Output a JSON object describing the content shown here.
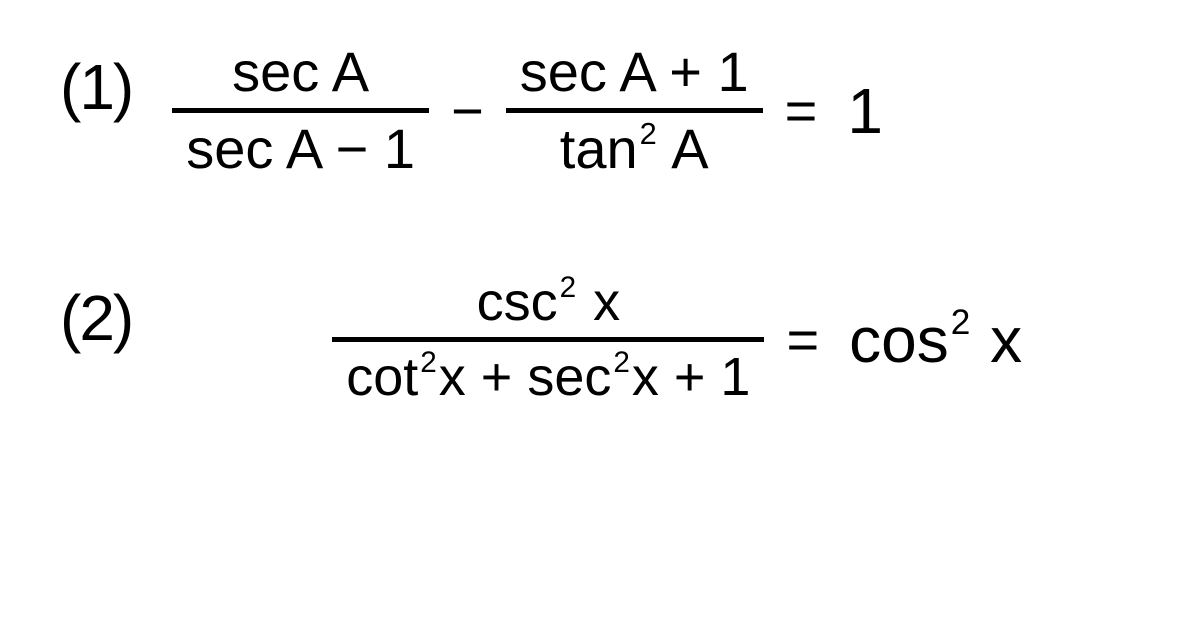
{
  "background_color": "#ffffff",
  "text_color": "#000000",
  "problems": [
    {
      "label": "(1)",
      "frac1_num": "sec A",
      "frac1_den": "sec A − 1",
      "op1": "−",
      "frac2_num": "sec A + 1",
      "frac2_den_pre": "tan",
      "frac2_den_sup": "2",
      "frac2_den_post": " A",
      "eq": "=",
      "rhs": "1"
    },
    {
      "label": "(2)",
      "frac_num_pre": "csc",
      "frac_num_sup": "2",
      "frac_num_post": " x",
      "frac_den_t1_pre": "cot",
      "frac_den_t1_sup": "2",
      "frac_den_t1_post": "x",
      "frac_den_plus": " + ",
      "frac_den_t2_pre": "sec",
      "frac_den_t2_sup": "2",
      "frac_den_t2_post": "x",
      "frac_den_tail": " + 1",
      "eq": "=",
      "rhs_pre": "cos",
      "rhs_sup": "2",
      "rhs_post": " x"
    }
  ]
}
